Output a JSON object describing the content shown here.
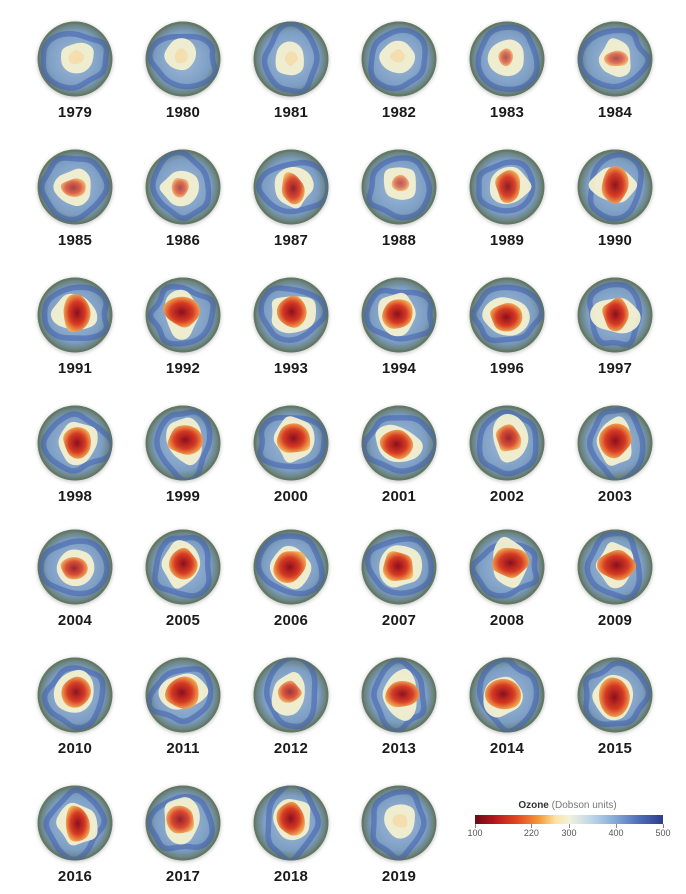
{
  "years": [
    "1979",
    "1980",
    "1981",
    "1982",
    "1983",
    "1984",
    "1985",
    "1986",
    "1987",
    "1988",
    "1989",
    "1990",
    "1991",
    "1992",
    "1993",
    "1994",
    "1996",
    "1997",
    "1998",
    "1999",
    "2000",
    "2001",
    "2002",
    "2003",
    "2004",
    "2005",
    "2006",
    "2007",
    "2008",
    "2009",
    "2010",
    "2011",
    "2012",
    "2013",
    "2014",
    "2015",
    "2016",
    "2017",
    "2018",
    "2019"
  ],
  "hole_intensity": [
    0.05,
    0.05,
    0.05,
    0.12,
    0.3,
    0.35,
    0.45,
    0.35,
    0.7,
    0.25,
    0.75,
    0.8,
    0.85,
    0.85,
    0.85,
    0.95,
    0.9,
    0.85,
    0.85,
    0.9,
    0.9,
    0.9,
    0.65,
    0.95,
    0.65,
    0.9,
    0.95,
    0.9,
    0.95,
    0.9,
    0.8,
    0.9,
    0.55,
    0.8,
    0.9,
    0.95,
    0.85,
    0.7,
    0.9,
    0.15
  ],
  "legend": {
    "title": "Ozone",
    "units": "(Dobson units)",
    "ticks": [
      "100",
      "220",
      "300",
      "400",
      "500"
    ]
  },
  "colors": {
    "ocean": "#7d9ec4",
    "rim": "#5f7358",
    "hole_low": "#8b0f1f",
    "hole_mid": "#d63a22",
    "hole_edge": "#f4b85a",
    "collar": "#f3f0cf",
    "ring": "#3f5fae"
  }
}
